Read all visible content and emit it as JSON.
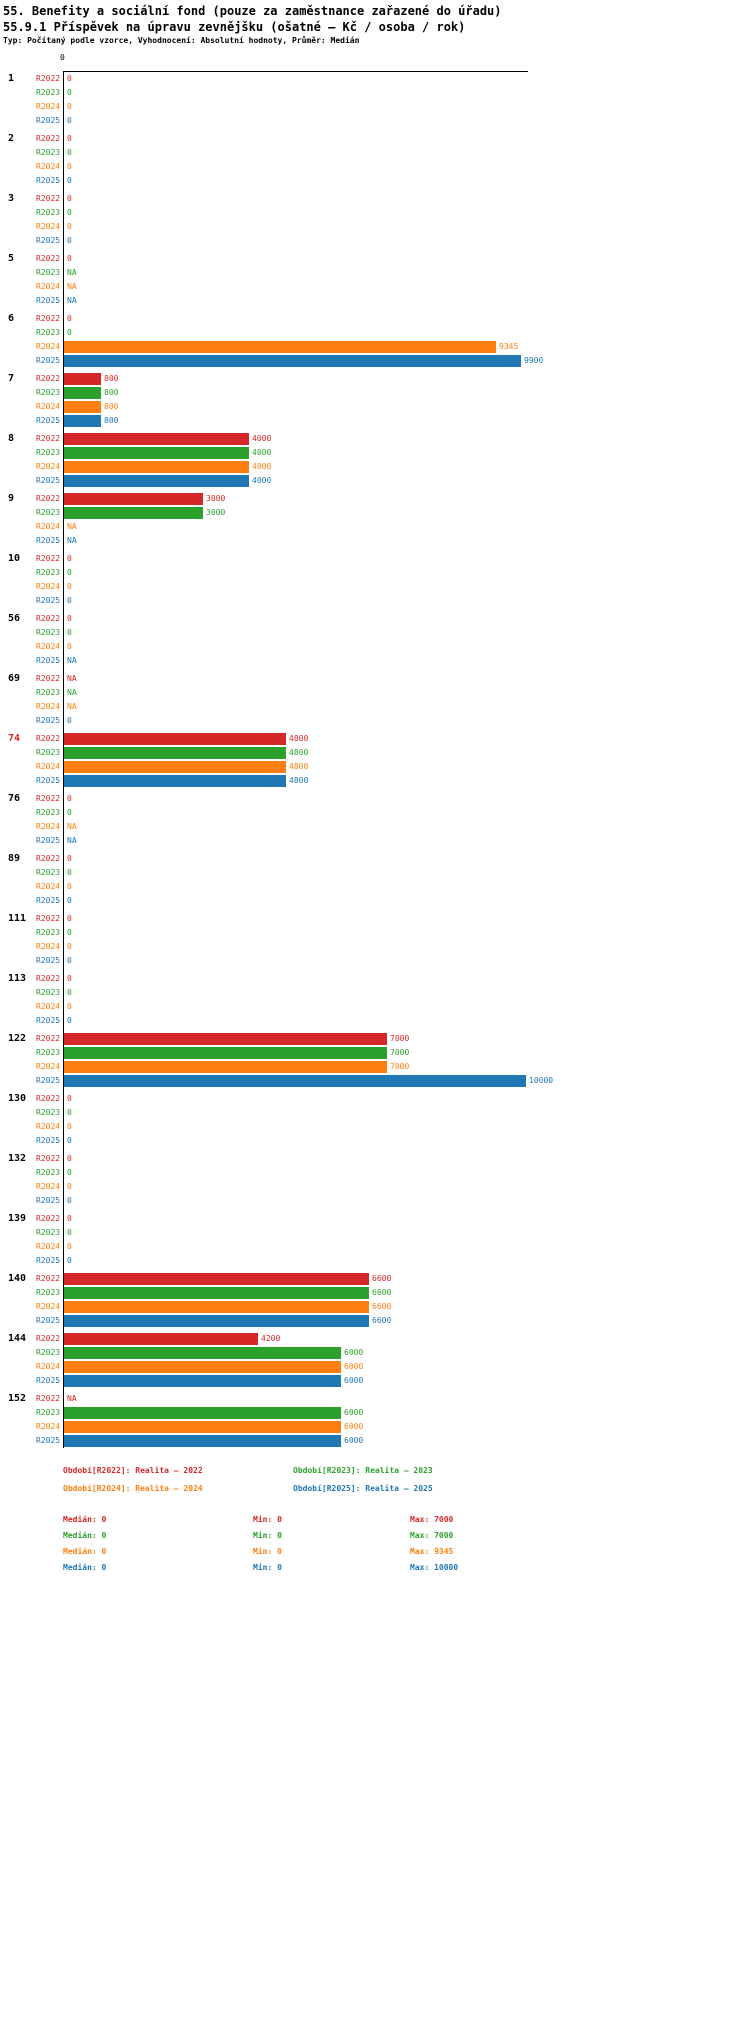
{
  "chart_data": {
    "type": "bar",
    "orientation": "horizontal",
    "title": "55. Benefity a sociální fond (pouze za zaměstnance zařazené do úřadu)",
    "subtitle": "55.9.1 Příspěvek na úpravu zevnějšku (ošatné – Kč / osoba / rok)",
    "meta": "Typ: Počítaný podle vzorce, Vyhodnocení: Absolutní hodnoty, Průměr: Medián",
    "axis": {
      "tick_label": "0",
      "min": 0,
      "max": 10000,
      "grid": false
    },
    "series": [
      "R2022",
      "R2023",
      "R2024",
      "R2025"
    ],
    "colors": [
      "#d62728",
      "#2ca02c",
      "#ff7f0e",
      "#1f77b4"
    ],
    "highlight_color": "#d62728",
    "na_text": "NA",
    "groups": [
      {
        "label": "1",
        "highlight": false,
        "values": [
          0,
          0,
          0,
          0
        ]
      },
      {
        "label": "2",
        "highlight": false,
        "values": [
          0,
          0,
          0,
          0
        ]
      },
      {
        "label": "3",
        "highlight": false,
        "values": [
          0,
          0,
          0,
          0
        ]
      },
      {
        "label": "5",
        "highlight": false,
        "values": [
          0,
          "NA",
          "NA",
          "NA"
        ]
      },
      {
        "label": "6",
        "highlight": false,
        "values": [
          0,
          0,
          9345,
          9900
        ]
      },
      {
        "label": "7",
        "highlight": false,
        "values": [
          800,
          800,
          800,
          800
        ]
      },
      {
        "label": "8",
        "highlight": false,
        "values": [
          4000,
          4000,
          4000,
          4000
        ]
      },
      {
        "label": "9",
        "highlight": false,
        "values": [
          3000,
          3000,
          "NA",
          "NA"
        ]
      },
      {
        "label": "10",
        "highlight": false,
        "values": [
          0,
          0,
          0,
          0
        ]
      },
      {
        "label": "56",
        "highlight": false,
        "values": [
          0,
          0,
          0,
          "NA"
        ]
      },
      {
        "label": "69",
        "highlight": false,
        "values": [
          "NA",
          "NA",
          "NA",
          0
        ]
      },
      {
        "label": "74",
        "highlight": true,
        "values": [
          4800,
          4800,
          4800,
          4800
        ]
      },
      {
        "label": "76",
        "highlight": false,
        "values": [
          0,
          0,
          "NA",
          "NA"
        ]
      },
      {
        "label": "89",
        "highlight": false,
        "values": [
          0,
          0,
          0,
          0
        ]
      },
      {
        "label": "111",
        "highlight": false,
        "values": [
          0,
          0,
          0,
          0
        ]
      },
      {
        "label": "113",
        "highlight": false,
        "values": [
          0,
          0,
          0,
          0
        ]
      },
      {
        "label": "122",
        "highlight": false,
        "values": [
          7000,
          7000,
          7000,
          10000
        ]
      },
      {
        "label": "130",
        "highlight": false,
        "values": [
          0,
          0,
          0,
          0
        ]
      },
      {
        "label": "132",
        "highlight": false,
        "values": [
          0,
          0,
          0,
          0
        ]
      },
      {
        "label": "139",
        "highlight": false,
        "values": [
          0,
          0,
          0,
          0
        ]
      },
      {
        "label": "140",
        "highlight": false,
        "values": [
          6600,
          6600,
          6600,
          6600
        ]
      },
      {
        "label": "144",
        "highlight": false,
        "values": [
          4200,
          6000,
          6000,
          6000
        ]
      },
      {
        "label": "152",
        "highlight": false,
        "values": [
          "NA",
          6000,
          6000,
          6000
        ]
      }
    ],
    "legend": [
      {
        "label": "Období[R2022]: Realita – 2022",
        "color": "#d62728"
      },
      {
        "label": "Období[R2023]: Realita – 2023",
        "color": "#2ca02c"
      },
      {
        "label": "Období[R2024]: Realita – 2024",
        "color": "#ff7f0e"
      },
      {
        "label": "Období[R2025]: Realita – 2025",
        "color": "#1f77b4"
      }
    ],
    "stats": [
      {
        "series": "R2022",
        "color": "#d62728",
        "median": "Medián: 0",
        "min": "Min: 0",
        "max": "Max: 7000"
      },
      {
        "series": "R2023",
        "color": "#2ca02c",
        "median": "Medián: 0",
        "min": "Min: 0",
        "max": "Max: 7000"
      },
      {
        "series": "R2024",
        "color": "#ff7f0e",
        "median": "Medián: 0",
        "min": "Min: 0",
        "max": "Max: 9345"
      },
      {
        "series": "R2025",
        "color": "#1f77b4",
        "median": "Medián: 0",
        "min": "Min: 0",
        "max": "Max: 10000"
      }
    ]
  }
}
